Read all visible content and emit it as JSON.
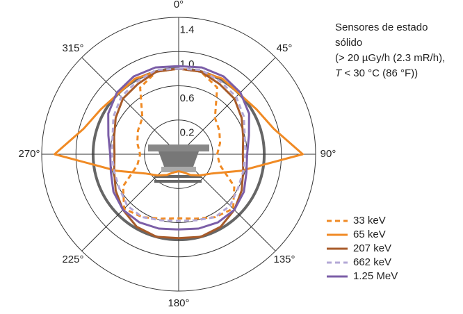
{
  "chart_data": {
    "type": "polar",
    "theta": [
      0,
      15,
      30,
      45,
      60,
      75,
      90,
      105,
      120,
      135,
      150,
      165,
      180,
      195,
      210,
      225,
      240,
      255,
      270,
      285,
      300,
      315,
      330,
      345
    ],
    "rlim": [
      0,
      1.6
    ],
    "rgrid": [
      0.4,
      0.8,
      1.2,
      1.6
    ],
    "reference_ring": 1,
    "rticks": [
      0.2,
      0.6,
      {
        "value": 1,
        "label": "1.0"
      },
      1.4
    ],
    "thetaticks": [
      {
        "value": 0,
        "label": "0°"
      },
      {
        "value": 45,
        "label": "45°"
      },
      {
        "value": 90,
        "label": "90°"
      },
      {
        "value": 135,
        "label": "135°"
      },
      {
        "value": 180,
        "label": "180°"
      },
      {
        "value": 225,
        "label": "225°"
      },
      {
        "value": 270,
        "label": "270°"
      },
      {
        "value": 315,
        "label": "315°"
      }
    ],
    "annotation": [
      "Sensores de estado",
      "sólido",
      "(> 20 µGy/h (2.3 mR/h),"
    ],
    "annotation_last": [
      "T",
      " < 30 °C (86 °F))"
    ],
    "series": [
      {
        "name": "33 keV",
        "color": "#f08a24",
        "dashed": true,
        "values": [
          1.0,
          1.0,
          0.9,
          0.6,
          0.55,
          0.5,
          0.45,
          0.5,
          0.75,
          0.9,
          0.85,
          0.78,
          0.75,
          0.78,
          0.85,
          0.9,
          0.75,
          0.5,
          0.45,
          0.5,
          0.55,
          0.6,
          0.9,
          1.0
        ]
      },
      {
        "name": "65 keV",
        "color": "#f08a24",
        "dashed": false,
        "values": [
          1.0,
          1.0,
          1.02,
          1.0,
          1.05,
          1.15,
          1.45,
          0.75,
          0.45,
          0.35,
          0.28,
          0.22,
          0.2,
          0.22,
          0.28,
          0.35,
          0.45,
          0.75,
          1.45,
          1.15,
          1.05,
          1.0,
          1.02,
          1.0
        ]
      },
      {
        "name": "207 keV",
        "color": "#a85b2a",
        "dashed": false,
        "values": [
          1.0,
          1.0,
          0.95,
          0.92,
          0.85,
          0.78,
          0.75,
          0.78,
          0.85,
          0.92,
          0.98,
          1.0,
          0.98,
          1.0,
          0.98,
          0.92,
          0.85,
          0.78,
          0.75,
          0.78,
          0.85,
          0.92,
          0.95,
          1.0
        ]
      },
      {
        "name": "662 keV",
        "color": "#b3a8d6",
        "dashed": true,
        "values": [
          1.0,
          1.02,
          0.98,
          0.95,
          0.88,
          0.8,
          0.78,
          0.78,
          0.8,
          0.85,
          0.85,
          0.8,
          0.78,
          0.8,
          0.85,
          0.85,
          0.8,
          0.78,
          0.78,
          0.8,
          0.88,
          0.95,
          0.98,
          1.02
        ]
      },
      {
        "name": "1.25 MeV",
        "color": "#7b5ea7",
        "dashed": false,
        "values": [
          1.03,
          1.05,
          1.05,
          1.02,
          0.95,
          0.85,
          0.8,
          0.82,
          0.88,
          0.92,
          0.92,
          0.9,
          0.88,
          0.9,
          0.92,
          0.92,
          0.88,
          0.82,
          0.8,
          0.85,
          0.95,
          1.02,
          1.05,
          1.05
        ]
      }
    ]
  }
}
